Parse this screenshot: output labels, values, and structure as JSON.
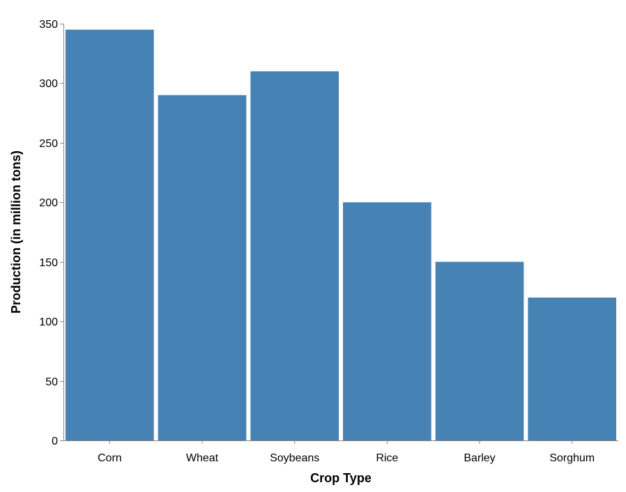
{
  "chart_data": {
    "type": "bar",
    "title": "",
    "xlabel": "Crop Type",
    "ylabel": "Production (in million tons)",
    "categories": [
      "Corn",
      "Wheat",
      "Soybeans",
      "Rice",
      "Barley",
      "Sorghum"
    ],
    "values": [
      345,
      290,
      310,
      200,
      150,
      120
    ],
    "ylim": [
      0,
      350
    ],
    "yticks": [
      0,
      50,
      100,
      150,
      200,
      250,
      300,
      350
    ],
    "grid": false,
    "legend": "none",
    "colors": {
      "bar": "#4682b4",
      "axis": "#888888",
      "text": "#000000"
    }
  }
}
